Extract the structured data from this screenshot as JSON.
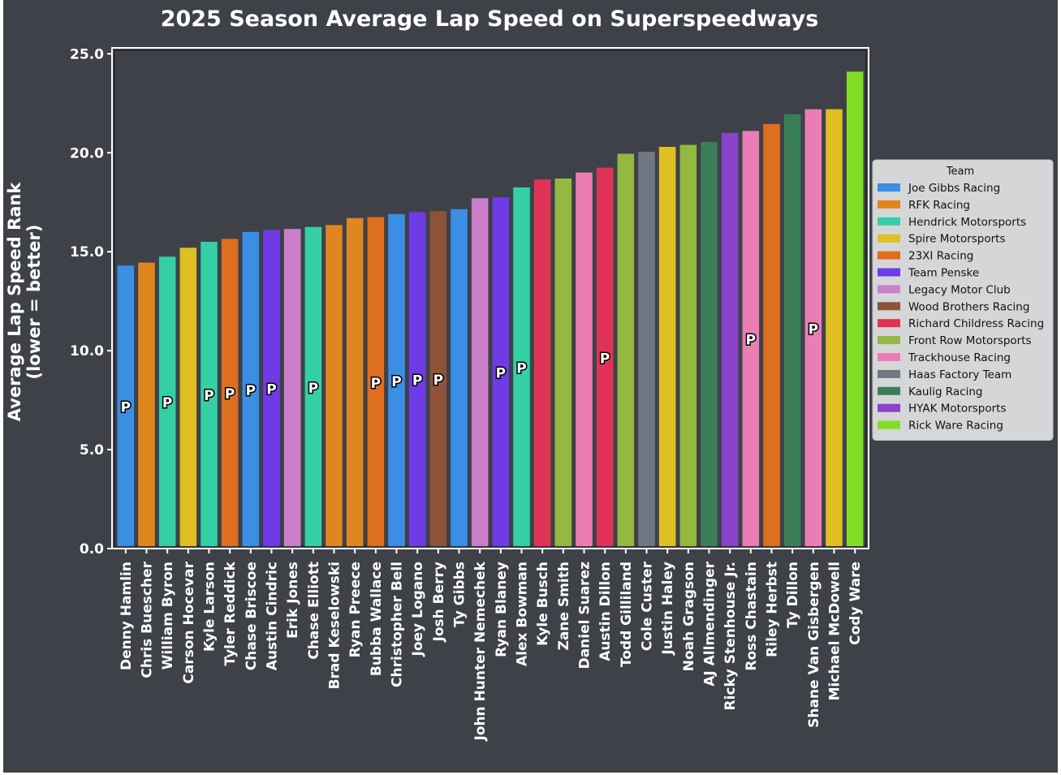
{
  "chart_data": {
    "type": "bar",
    "title": "2025 Season Average Lap Speed on Superspeedways",
    "ylabel": "Average Lap Speed Rank\n(lower = better)",
    "xlabel": "",
    "ylim": [
      0,
      25.3
    ],
    "yticks": [
      "0.0",
      "5.0",
      "10.0",
      "15.0",
      "20.0",
      "25.0"
    ],
    "grid": false,
    "legend_title": "Team",
    "legend_position": "right",
    "pole_marker": "P",
    "teams": [
      {
        "name": "Joe Gibbs Racing",
        "color": "#3b8ee3"
      },
      {
        "name": "RFK Racing",
        "color": "#e0861f"
      },
      {
        "name": "Hendrick Motorsports",
        "color": "#35cfa6"
      },
      {
        "name": "Spire Motorsports",
        "color": "#dfbf22"
      },
      {
        "name": "23XI Racing",
        "color": "#de6e20"
      },
      {
        "name": "Team Penske",
        "color": "#6e3be6"
      },
      {
        "name": "Legacy Motor Club",
        "color": "#cb7fcb"
      },
      {
        "name": "Wood Brothers Racing",
        "color": "#8c5338"
      },
      {
        "name": "Richard Childress Racing",
        "color": "#df3356"
      },
      {
        "name": "Front Row Motorsports",
        "color": "#95b843"
      },
      {
        "name": "Trackhouse Racing",
        "color": "#ea7eb4"
      },
      {
        "name": "Haas Factory Team",
        "color": "#6f7883"
      },
      {
        "name": "Kaulig Racing",
        "color": "#3a7e58"
      },
      {
        "name": "HYAK Motorsports",
        "color": "#8a42cb"
      },
      {
        "name": "Rick Ware Racing",
        "color": "#80df25"
      }
    ],
    "bars": [
      {
        "driver": "Denny Hamlin",
        "team": 0,
        "value": 14.3,
        "pole": true
      },
      {
        "driver": "Chris Buescher",
        "team": 1,
        "value": 14.45,
        "pole": false
      },
      {
        "driver": "William Byron",
        "team": 2,
        "value": 14.75,
        "pole": true
      },
      {
        "driver": "Carson Hocevar",
        "team": 3,
        "value": 15.2,
        "pole": false
      },
      {
        "driver": "Kyle Larson",
        "team": 2,
        "value": 15.5,
        "pole": true
      },
      {
        "driver": "Tyler Reddick",
        "team": 4,
        "value": 15.65,
        "pole": true
      },
      {
        "driver": "Chase Briscoe",
        "team": 0,
        "value": 16.0,
        "pole": true
      },
      {
        "driver": "Austin Cindric",
        "team": 5,
        "value": 16.1,
        "pole": true
      },
      {
        "driver": "Erik Jones",
        "team": 6,
        "value": 16.15,
        "pole": false
      },
      {
        "driver": "Chase Elliott",
        "team": 2,
        "value": 16.25,
        "pole": true
      },
      {
        "driver": "Brad Keselowski",
        "team": 1,
        "value": 16.35,
        "pole": false
      },
      {
        "driver": "Ryan Preece",
        "team": 1,
        "value": 16.7,
        "pole": false
      },
      {
        "driver": "Bubba Wallace",
        "team": 4,
        "value": 16.75,
        "pole": true
      },
      {
        "driver": "Christopher Bell",
        "team": 0,
        "value": 16.9,
        "pole": true
      },
      {
        "driver": "Joey Logano",
        "team": 5,
        "value": 17.0,
        "pole": true
      },
      {
        "driver": "Josh Berry",
        "team": 7,
        "value": 17.05,
        "pole": true
      },
      {
        "driver": "Ty Gibbs",
        "team": 0,
        "value": 17.15,
        "pole": false
      },
      {
        "driver": "John Hunter Nemechek",
        "team": 6,
        "value": 17.7,
        "pole": false
      },
      {
        "driver": "Ryan Blaney",
        "team": 5,
        "value": 17.75,
        "pole": true
      },
      {
        "driver": "Alex Bowman",
        "team": 2,
        "value": 18.25,
        "pole": true
      },
      {
        "driver": "Kyle Busch",
        "team": 8,
        "value": 18.65,
        "pole": false
      },
      {
        "driver": "Zane Smith",
        "team": 9,
        "value": 18.7,
        "pole": false
      },
      {
        "driver": "Daniel Suarez",
        "team": 10,
        "value": 19.0,
        "pole": false
      },
      {
        "driver": "Austin Dillon",
        "team": 8,
        "value": 19.25,
        "pole": true
      },
      {
        "driver": "Todd Gilliland",
        "team": 9,
        "value": 19.95,
        "pole": false
      },
      {
        "driver": "Cole Custer",
        "team": 11,
        "value": 20.05,
        "pole": false
      },
      {
        "driver": "Justin Haley",
        "team": 3,
        "value": 20.3,
        "pole": false
      },
      {
        "driver": "Noah Gragson",
        "team": 9,
        "value": 20.4,
        "pole": false
      },
      {
        "driver": "AJ Allmendinger",
        "team": 12,
        "value": 20.55,
        "pole": false
      },
      {
        "driver": "Ricky Stenhouse Jr.",
        "team": 13,
        "value": 21.0,
        "pole": false
      },
      {
        "driver": "Ross Chastain",
        "team": 10,
        "value": 21.1,
        "pole": true
      },
      {
        "driver": "Riley Herbst",
        "team": 4,
        "value": 21.45,
        "pole": false
      },
      {
        "driver": "Ty Dillon",
        "team": 12,
        "value": 21.95,
        "pole": false
      },
      {
        "driver": "Shane Van Gisbergen",
        "team": 10,
        "value": 22.2,
        "pole": true
      },
      {
        "driver": "Michael McDowell",
        "team": 3,
        "value": 22.2,
        "pole": false
      },
      {
        "driver": "Cody Ware",
        "team": 14,
        "value": 24.1,
        "pole": false
      }
    ]
  }
}
